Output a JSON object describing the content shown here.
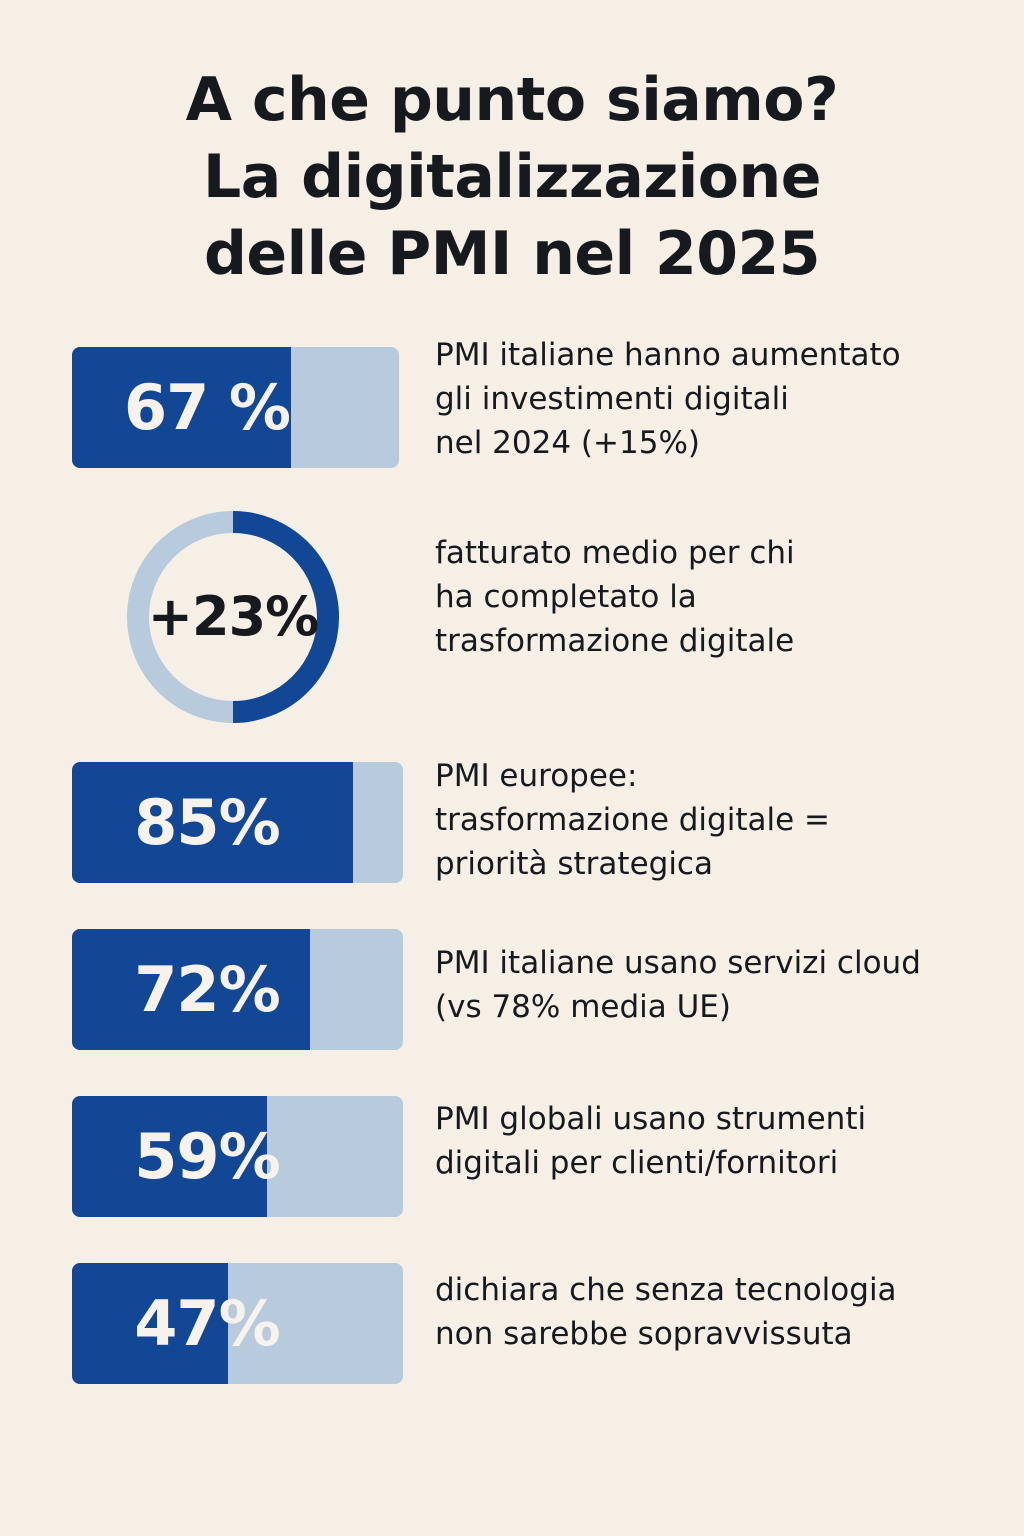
{
  "title": {
    "line1": "A che punto siamo?",
    "line2": "La digitalizzazione",
    "line3": "delle PMI nel 2025"
  },
  "colors": {
    "background": "#f5efe6",
    "bar_fill": "#124796",
    "bar_track": "#b7cbdd",
    "text": "#16191d"
  },
  "chart_data": [
    {
      "type": "bar",
      "value": 67,
      "label": "67 %",
      "description": [
        "PMI italiane hanno aumentato",
        "gli investimenti digitali",
        "nel 2024 (+15%)"
      ]
    },
    {
      "type": "pie",
      "value": 50,
      "label": "+23%",
      "description": [
        "fatturato medio per chi",
        "ha completato la",
        "trasformazione digitale"
      ]
    },
    {
      "type": "bar",
      "value": 85,
      "label": "85%",
      "description": [
        "PMI europee:",
        "trasformazione digitale =",
        "priorità strategica"
      ]
    },
    {
      "type": "bar",
      "value": 72,
      "label": "72%",
      "description": [
        "PMI italiane usano servizi cloud",
        "(vs 78% media UE)"
      ]
    },
    {
      "type": "bar",
      "value": 59,
      "label": "59%",
      "description": [
        "PMI globali usano strumenti",
        "digitali per clienti/fornitori"
      ]
    },
    {
      "type": "bar",
      "value": 47,
      "label": "47%",
      "description": [
        "dichiara che senza tecnologia",
        "non sarebbe sopravvissuta"
      ]
    }
  ]
}
